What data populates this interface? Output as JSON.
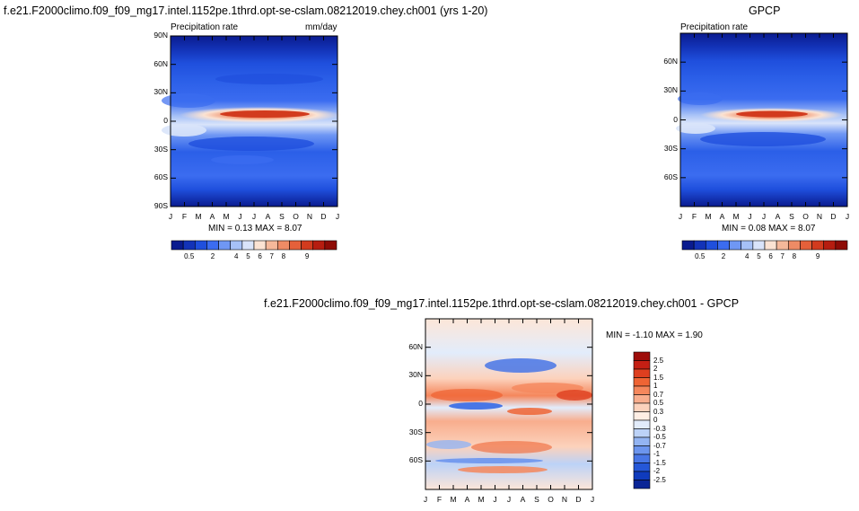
{
  "panels": {
    "model": {
      "title": "f.e21.F2000climo.f09_f09_mg17.intel.1152pe.1thrd.opt-se-cslam.08212019.chey.ch001 (yrs 1-20)",
      "left_label": "Precipitation rate",
      "right_label": "mm/day",
      "minmax": "MIN =   0.13 MAX =   8.07"
    },
    "obs": {
      "title": "GPCP",
      "left_label": "Precipitation rate",
      "minmax": "MIN =   0.08 MAX =   8.07"
    },
    "diff": {
      "title": "f.e21.F2000climo.f09_f09_mg17.intel.1152pe.1thrd.opt-se-cslam.08212019.chey.ch001 - GPCP",
      "minmax": "MIN =  -1.10 MAX =   1.90"
    }
  },
  "chart_data": [
    {
      "type": "heatmap",
      "title": "f.e21.F2000climo.f09_f09_mg17.intel.1152pe.1thrd.opt-se-cslam.08212019.chey.ch001 (yrs 1-20)",
      "xlabel": "",
      "ylabel": "",
      "x_ticks": [
        "J",
        "F",
        "M",
        "A",
        "M",
        "J",
        "J",
        "A",
        "S",
        "O",
        "N",
        "D",
        "J"
      ],
      "y_ticks": [
        "90N",
        "60N",
        "30N",
        "0",
        "30S",
        "60S",
        "90S"
      ],
      "ylim": [
        -90,
        90
      ],
      "units": "mm/day",
      "min": 0.13,
      "max": 8.07
    },
    {
      "type": "heatmap",
      "title": "GPCP",
      "x_ticks": [
        "J",
        "F",
        "M",
        "A",
        "M",
        "J",
        "J",
        "A",
        "S",
        "O",
        "N",
        "D",
        "J"
      ],
      "y_ticks": [
        "60N",
        "30N",
        "0",
        "30S",
        "60S"
      ],
      "ylim": [
        -90,
        90
      ],
      "min": 0.08,
      "max": 8.07
    },
    {
      "type": "heatmap",
      "title": "f.e21.F2000climo.f09_f09_mg17.intel.1152pe.1thrd.opt-se-cslam.08212019.chey.ch001 - GPCP",
      "x_ticks": [
        "J",
        "F",
        "M",
        "A",
        "M",
        "J",
        "J",
        "A",
        "S",
        "O",
        "N",
        "D",
        "J"
      ],
      "y_ticks": [
        "60N",
        "30N",
        "0",
        "30S",
        "60S"
      ],
      "ylim": [
        -90,
        90
      ],
      "min": -1.1,
      "max": 1.9
    }
  ],
  "colorbars": {
    "precip": {
      "labels": [
        "0.5",
        "2",
        "4",
        "5",
        "6",
        "7",
        "8",
        "9"
      ],
      "colors": [
        "#0a1b8f",
        "#1333b8",
        "#1f4fdd",
        "#3b6cf0",
        "#6f97f4",
        "#a6c1f7",
        "#d9e4fa",
        "#fbe3d3",
        "#f5b89a",
        "#ee8b65",
        "#e5603a",
        "#d23b1e",
        "#b61d10",
        "#8e0c06"
      ]
    },
    "diff": {
      "labels": [
        "2.5",
        "2",
        "1.5",
        "1",
        "0.7",
        "0.5",
        "0.3",
        "0",
        "-0.3",
        "-0.5",
        "-0.7",
        "-1",
        "-1.5",
        "-2",
        "-2.5"
      ],
      "colors": [
        "#9e0d0a",
        "#c41f14",
        "#de3f1f",
        "#ef6434",
        "#f5875c",
        "#f8ad8d",
        "#fcd2bc",
        "#ffeee4",
        "#e2ecfb",
        "#bcd2f7",
        "#93b4f2",
        "#6c95ee",
        "#4876e6",
        "#2557d8",
        "#0f3bbd",
        "#0a2596"
      ]
    }
  }
}
